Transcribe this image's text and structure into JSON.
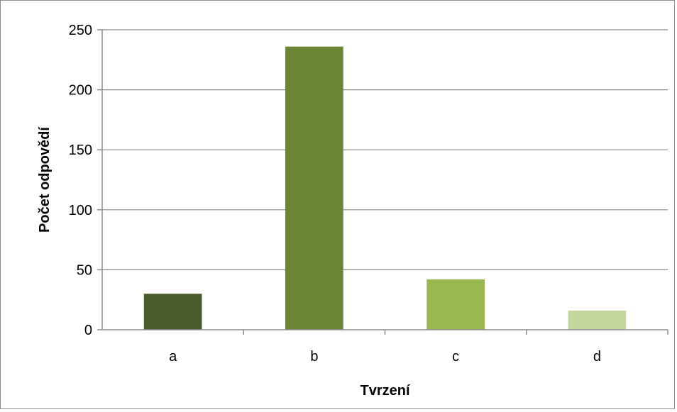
{
  "chart_data": {
    "type": "bar",
    "categories": [
      "a",
      "b",
      "c",
      "d"
    ],
    "values": [
      30,
      236,
      42,
      16
    ],
    "colors": [
      "#4a5c2a",
      "#6b8436",
      "#99b84f",
      "#c4d69b"
    ],
    "xlabel": "Tvrzení",
    "ylabel": "Počet odpovědí",
    "ylim": [
      0,
      250
    ],
    "yticks": [
      0,
      50,
      100,
      150,
      200,
      250
    ],
    "grid": true,
    "legend": "none"
  }
}
